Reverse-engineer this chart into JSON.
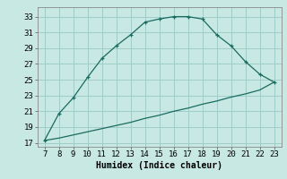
{
  "upper_x": [
    7,
    8,
    9,
    10,
    11,
    12,
    13,
    14,
    15,
    16,
    17,
    18,
    19,
    20,
    21,
    22,
    23
  ],
  "upper_y": [
    17.3,
    20.7,
    22.7,
    25.3,
    27.7,
    29.3,
    30.7,
    32.3,
    32.7,
    33.0,
    33.0,
    32.7,
    30.7,
    29.3,
    27.3,
    25.7,
    24.7
  ],
  "lower_x": [
    7,
    8,
    9,
    10,
    11,
    12,
    13,
    14,
    15,
    16,
    17,
    18,
    19,
    20,
    21,
    22,
    23
  ],
  "lower_y": [
    17.3,
    17.6,
    18.0,
    18.4,
    18.8,
    19.2,
    19.6,
    20.1,
    20.5,
    21.0,
    21.4,
    21.9,
    22.3,
    22.8,
    23.2,
    23.7,
    24.7
  ],
  "line_color": "#1a6b5e",
  "bg_color": "#c8e8e4",
  "grid_color": "#a0ccc8",
  "xlabel": "Humidex (Indice chaleur)",
  "xlim": [
    6.5,
    23.5
  ],
  "ylim": [
    16.5,
    34.2
  ],
  "xticks": [
    7,
    8,
    9,
    10,
    11,
    12,
    13,
    14,
    15,
    16,
    17,
    18,
    19,
    20,
    21,
    22,
    23
  ],
  "yticks": [
    17,
    19,
    21,
    23,
    25,
    27,
    29,
    31,
    33
  ],
  "xlabel_fontsize": 7,
  "tick_fontsize": 6.5
}
